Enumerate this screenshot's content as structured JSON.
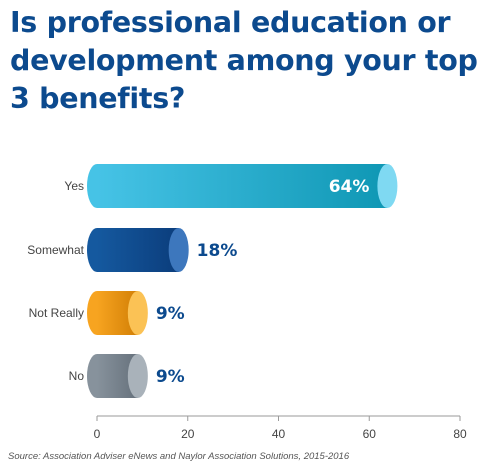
{
  "title": "Is professional education or development among your top 3 benefits?",
  "source": "Source: Association Adviser eNews and Naylor Association Solutions, 2015-2016",
  "chart_data": {
    "type": "bar",
    "orientation": "horizontal",
    "title": "Is professional education or development among your top 3 benefits?",
    "xlabel": "",
    "ylabel": "",
    "categories": [
      "Yes",
      "Somewhat",
      "Not Really",
      "No"
    ],
    "values": [
      64,
      18,
      9,
      9
    ],
    "value_labels": [
      "64%",
      "18%",
      "9%",
      "9%"
    ],
    "xlim": [
      0,
      80
    ],
    "xticks": [
      0,
      20,
      40,
      60,
      80
    ],
    "grid": false,
    "bar_colors": [
      {
        "dark": "#0f97b4",
        "light": "#46c3e6",
        "cap": "#7fd9f2"
      },
      {
        "dark": "#0b3d7c",
        "light": "#15599f",
        "cap": "#3d77bd"
      },
      {
        "dark": "#d27f06",
        "light": "#f7a420",
        "cap": "#fbc255"
      },
      {
        "dark": "#66717c",
        "light": "#87929c",
        "cap": "#a9b2ba"
      }
    ],
    "label_color": "#0c4a8e",
    "inside_label_color": "#ffffff"
  }
}
